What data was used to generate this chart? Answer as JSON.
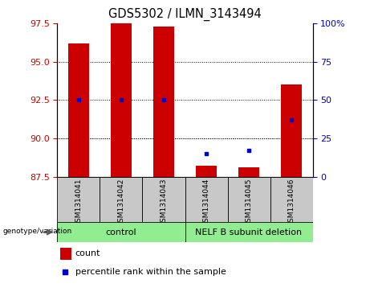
{
  "title": "GDS5302 / ILMN_3143494",
  "samples": [
    "GSM1314041",
    "GSM1314042",
    "GSM1314043",
    "GSM1314044",
    "GSM1314045",
    "GSM1314046"
  ],
  "red_bar_values": [
    96.2,
    97.5,
    97.3,
    88.2,
    88.1,
    93.5
  ],
  "blue_marker_values": [
    92.5,
    92.5,
    92.5,
    89.0,
    89.2,
    91.2
  ],
  "ylim_left": [
    87.5,
    97.5
  ],
  "ylim_right": [
    0,
    100
  ],
  "yticks_left": [
    87.5,
    90.0,
    92.5,
    95.0,
    97.5
  ],
  "yticks_right": [
    0,
    25,
    50,
    75,
    100
  ],
  "yticklabels_right": [
    "0",
    "25",
    "50",
    "75",
    "100%"
  ],
  "grid_values": [
    90.0,
    92.5,
    95.0
  ],
  "bar_color": "#cc0000",
  "marker_color": "#0000cc",
  "bar_width": 0.5,
  "label_color_left": "#cc0000",
  "label_color_right": "#0000cc",
  "group_box_color": "#c8c8c8",
  "group_green_color": "#90ee90",
  "genotype_label": "genotype/variation",
  "group_label_1": "control",
  "group_label_2": "NELF B subunit deletion",
  "legend_count_color": "#cc0000",
  "legend_percentile_color": "#0000cc"
}
